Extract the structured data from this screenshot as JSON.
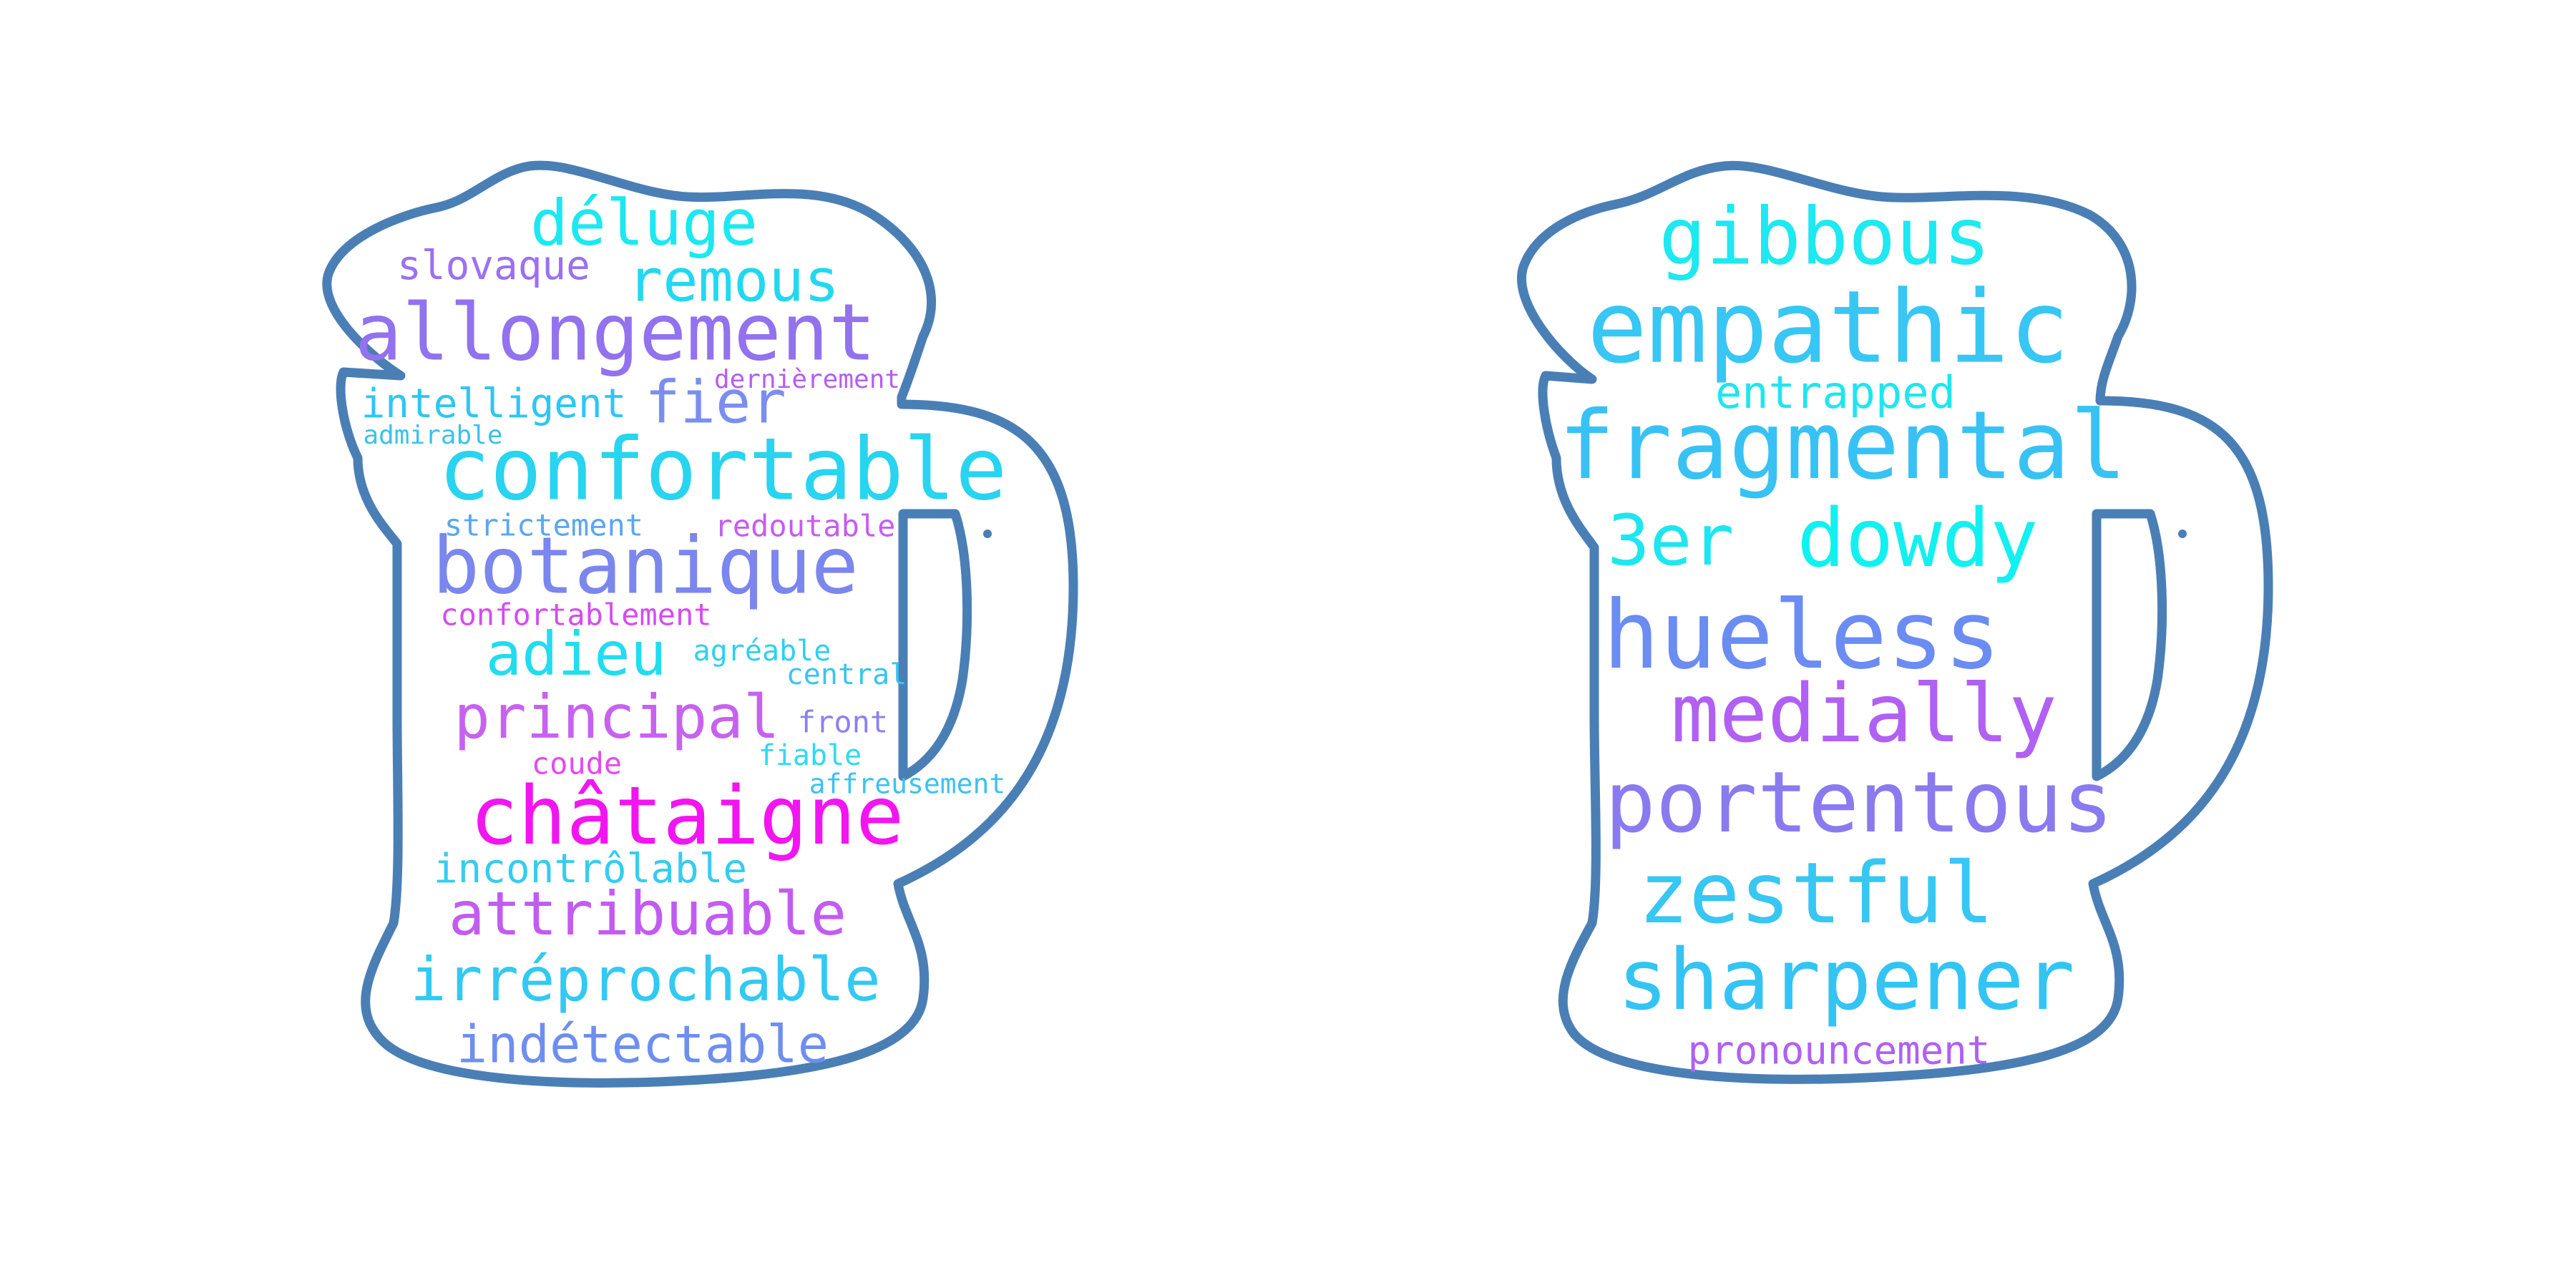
{
  "clouds": [
    {
      "words": [
        {
          "text": "déluge",
          "color": "#1be8f0"
        },
        {
          "text": "slovaque",
          "color": "#9b70f2"
        },
        {
          "text": "remous",
          "color": "#22d8f0"
        },
        {
          "text": "allongement",
          "color": "#9272ee"
        },
        {
          "text": "dernièrement",
          "color": "#b85cf0"
        },
        {
          "text": "intelligent",
          "color": "#2ec6f4"
        },
        {
          "text": "fier",
          "color": "#7b8ef0"
        },
        {
          "text": "admirable",
          "color": "#3cc0f0"
        },
        {
          "text": "confortable",
          "color": "#28d4f0"
        },
        {
          "text": "strictement",
          "color": "#5ca6f0"
        },
        {
          "text": "redoutable",
          "color": "#c65cf0"
        },
        {
          "text": "botanique",
          "color": "#7b86ee"
        },
        {
          "text": "confortablement",
          "color": "#d54cf0"
        },
        {
          "text": "adieu",
          "color": "#22dcf0"
        },
        {
          "text": "agréable",
          "color": "#30cff0"
        },
        {
          "text": "central",
          "color": "#38c4f0"
        },
        {
          "text": "principal",
          "color": "#c762f0"
        },
        {
          "text": "front",
          "color": "#8c80ef"
        },
        {
          "text": "coude",
          "color": "#e44af0"
        },
        {
          "text": "fiable",
          "color": "#2edaf0"
        },
        {
          "text": "affreusement",
          "color": "#3cc2f0"
        },
        {
          "text": "châtaigne",
          "color": "#f215f0"
        },
        {
          "text": "incontrôlable",
          "color": "#36ccf0"
        },
        {
          "text": "attribuable",
          "color": "#c25cf0"
        },
        {
          "text": "irréprochable",
          "color": "#32c9f2"
        },
        {
          "text": "indétectable",
          "color": "#6e8ef0"
        }
      ]
    },
    {
      "words": [
        {
          "text": "gibbous",
          "color": "#1ee8f0"
        },
        {
          "text": "empathic",
          "color": "#38c6f4"
        },
        {
          "text": "entrapped",
          "color": "#1ee6f0"
        },
        {
          "text": "fragmental",
          "color": "#38c2f4"
        },
        {
          "text": "3er",
          "color": "#1ee6f0"
        },
        {
          "text": "dowdy",
          "color": "#12f0f0"
        },
        {
          "text": "hueless",
          "color": "#6b8cf2"
        },
        {
          "text": "medially",
          "color": "#b060f2"
        },
        {
          "text": "portentous",
          "color": "#8a7af0"
        },
        {
          "text": "zestful",
          "color": "#38c6f2"
        },
        {
          "text": "sharpener",
          "color": "#33c4f4"
        },
        {
          "text": "pronouncement",
          "color": "#b060f2"
        }
      ]
    }
  ]
}
